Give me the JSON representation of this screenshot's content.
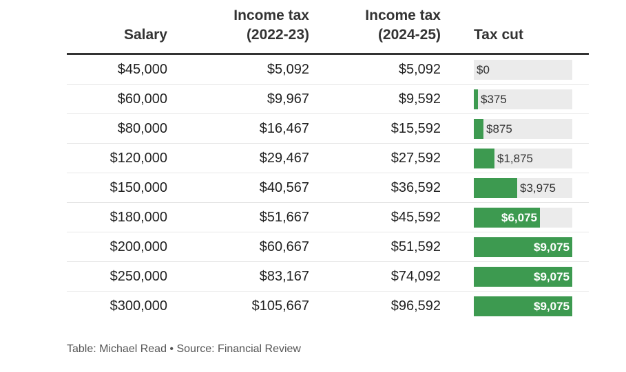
{
  "chart_data": {
    "type": "table",
    "columns": [
      "Salary",
      "Income tax (2022-23)",
      "Income tax (2024-25)",
      "Tax cut"
    ],
    "header": {
      "salary": "Salary",
      "tax_2223_line1": "Income tax",
      "tax_2223_line2": "(2022-23)",
      "tax_2425_line1": "Income tax",
      "tax_2425_line2": "(2024-25)",
      "tax_cut": "Tax cut"
    },
    "rows": [
      {
        "salary": "$45,000",
        "tax_2223": "$5,092",
        "tax_2425": "$5,092",
        "tax_cut": "$0",
        "tax_cut_value": 0
      },
      {
        "salary": "$60,000",
        "tax_2223": "$9,967",
        "tax_2425": "$9,592",
        "tax_cut": "$375",
        "tax_cut_value": 375
      },
      {
        "salary": "$80,000",
        "tax_2223": "$16,467",
        "tax_2425": "$15,592",
        "tax_cut": "$875",
        "tax_cut_value": 875
      },
      {
        "salary": "$120,000",
        "tax_2223": "$29,467",
        "tax_2425": "$27,592",
        "tax_cut": "$1,875",
        "tax_cut_value": 1875
      },
      {
        "salary": "$150,000",
        "tax_2223": "$40,567",
        "tax_2425": "$36,592",
        "tax_cut": "$3,975",
        "tax_cut_value": 3975
      },
      {
        "salary": "$180,000",
        "tax_2223": "$51,667",
        "tax_2425": "$45,592",
        "tax_cut": "$6,075",
        "tax_cut_value": 6075
      },
      {
        "salary": "$200,000",
        "tax_2223": "$60,667",
        "tax_2425": "$51,592",
        "tax_cut": "$9,075",
        "tax_cut_value": 9075
      },
      {
        "salary": "$250,000",
        "tax_2223": "$83,167",
        "tax_2425": "$74,092",
        "tax_cut": "$9,075",
        "tax_cut_value": 9075
      },
      {
        "salary": "$300,000",
        "tax_2223": "$105,667",
        "tax_2425": "$96,592",
        "tax_cut": "$9,075",
        "tax_cut_value": 9075
      }
    ],
    "bar_max": 9075,
    "bar_color": "#3d9a50",
    "track_color": "#ebebeb"
  },
  "footer": {
    "credit": "Table: Michael Read • Source: Financial Review"
  }
}
